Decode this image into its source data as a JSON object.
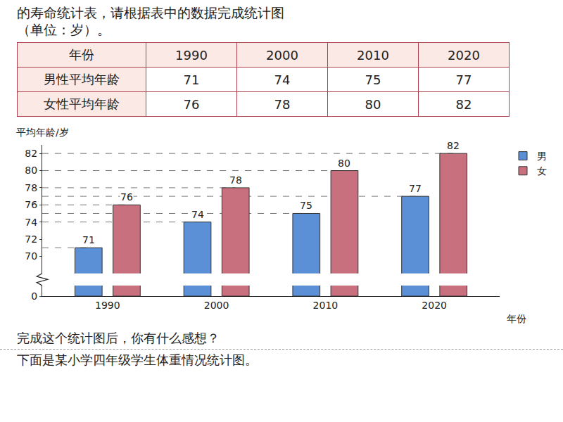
{
  "header": {
    "lines": [
      "的寿命统计表，请根据表中的数据完成统计图",
      "（单位：岁）。"
    ]
  },
  "table": {
    "header": [
      "年份",
      "1990",
      "2000",
      "2010",
      "2020"
    ],
    "rows": [
      [
        "男性平均年龄",
        "71",
        "74",
        "75",
        "77"
      ],
      [
        "女性平均年龄",
        "76",
        "78",
        "80",
        "82"
      ]
    ]
  },
  "chart_data": {
    "type": "bar",
    "y_label": "平均年龄/岁",
    "x_label": "年份",
    "categories": [
      "1990",
      "2000",
      "2010",
      "2020"
    ],
    "series": [
      {
        "name": "男",
        "color": "#5b8fd6",
        "values": [
          71,
          74,
          75,
          77
        ]
      },
      {
        "name": "女",
        "color": "#c9707e",
        "values": [
          76,
          78,
          80,
          82
        ]
      }
    ],
    "ylim": [
      0,
      83
    ],
    "yticks": [
      0,
      70,
      72,
      74,
      76,
      78,
      80,
      82
    ],
    "data_labels": true,
    "legend": "right",
    "grid": false
  },
  "text": [
    "完成这个统计图后，你有什么感想？",
    "下面是某小学四年级学生体重情况统计图。"
  ]
}
